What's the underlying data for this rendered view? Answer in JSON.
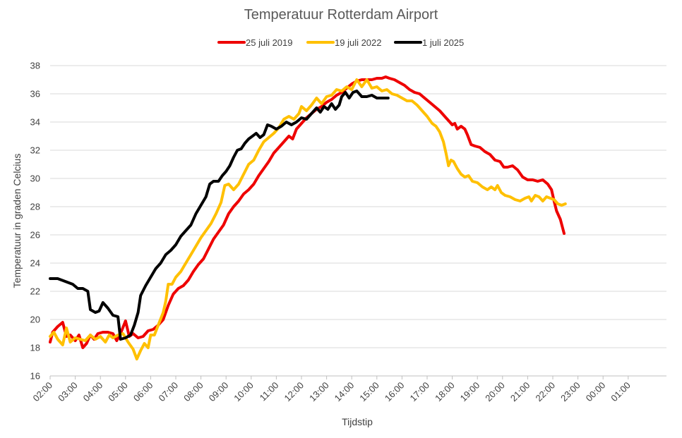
{
  "chart_data": {
    "type": "line",
    "title": "Temperatuur Rotterdam Airport",
    "xlabel": "Tijdstip",
    "ylabel": "Temperatuur in graden Celcius",
    "ylim": [
      16,
      38
    ],
    "yticks": [
      "16",
      "18",
      "20",
      "22",
      "24",
      "26",
      "28",
      "30",
      "32",
      "34",
      "36",
      "38"
    ],
    "xticks": [
      "02:00",
      "03:00",
      "04:00",
      "05:00",
      "06:00",
      "07:00",
      "08:00",
      "09:00",
      "10:00",
      "11:00",
      "12:00",
      "13:00",
      "14:00",
      "15:00",
      "16:00",
      "17:00",
      "18:00",
      "19:00",
      "20:00",
      "21:00",
      "22:00",
      "23:00",
      "00:00",
      "01:00"
    ],
    "xlim_hours": [
      0,
      24.5
    ],
    "grid": "horizontal",
    "legend_position": "top",
    "series": [
      {
        "name": "25 juli 2019",
        "color": "#ee0000",
        "points": [
          [
            0,
            18.4
          ],
          [
            0.1,
            19.1
          ],
          [
            0.3,
            19.5
          ],
          [
            0.5,
            19.8
          ],
          [
            0.65,
            18.8
          ],
          [
            0.8,
            18.9
          ],
          [
            1.0,
            18.5
          ],
          [
            1.15,
            18.9
          ],
          [
            1.3,
            18.0
          ],
          [
            1.45,
            18.3
          ],
          [
            1.6,
            18.9
          ],
          [
            1.75,
            18.6
          ],
          [
            1.9,
            19.0
          ],
          [
            2.1,
            19.1
          ],
          [
            2.3,
            19.1
          ],
          [
            2.5,
            19.0
          ],
          [
            2.65,
            18.5
          ],
          [
            2.8,
            19.0
          ],
          [
            3.0,
            19.9
          ],
          [
            3.15,
            18.8
          ],
          [
            3.3,
            19.0
          ],
          [
            3.5,
            18.7
          ],
          [
            3.7,
            18.8
          ],
          [
            3.9,
            19.2
          ],
          [
            4.1,
            19.3
          ],
          [
            4.3,
            19.6
          ],
          [
            4.5,
            20.0
          ],
          [
            4.7,
            21.0
          ],
          [
            4.9,
            21.8
          ],
          [
            5.1,
            22.2
          ],
          [
            5.3,
            22.4
          ],
          [
            5.5,
            22.8
          ],
          [
            5.7,
            23.4
          ],
          [
            5.9,
            23.9
          ],
          [
            6.1,
            24.3
          ],
          [
            6.3,
            25.0
          ],
          [
            6.5,
            25.7
          ],
          [
            6.7,
            26.2
          ],
          [
            6.9,
            26.7
          ],
          [
            7.1,
            27.5
          ],
          [
            7.3,
            28.0
          ],
          [
            7.5,
            28.4
          ],
          [
            7.7,
            28.9
          ],
          [
            7.9,
            29.2
          ],
          [
            8.1,
            29.6
          ],
          [
            8.3,
            30.2
          ],
          [
            8.5,
            30.7
          ],
          [
            8.7,
            31.2
          ],
          [
            8.9,
            31.8
          ],
          [
            9.1,
            32.2
          ],
          [
            9.3,
            32.6
          ],
          [
            9.5,
            33.0
          ],
          [
            9.65,
            32.8
          ],
          [
            9.8,
            33.5
          ],
          [
            10.0,
            33.9
          ],
          [
            10.2,
            34.3
          ],
          [
            10.4,
            34.6
          ],
          [
            10.6,
            34.9
          ],
          [
            10.8,
            35.1
          ],
          [
            11.0,
            35.4
          ],
          [
            11.2,
            35.6
          ],
          [
            11.4,
            35.9
          ],
          [
            11.6,
            36.1
          ],
          [
            11.8,
            36.4
          ],
          [
            12.0,
            36.7
          ],
          [
            12.2,
            36.9
          ],
          [
            12.4,
            37.0
          ],
          [
            12.6,
            37.0
          ],
          [
            12.8,
            37.0
          ],
          [
            13.0,
            37.1
          ],
          [
            13.2,
            37.1
          ],
          [
            13.35,
            37.2
          ],
          [
            13.5,
            37.1
          ],
          [
            13.7,
            37.0
          ],
          [
            13.9,
            36.8
          ],
          [
            14.1,
            36.6
          ],
          [
            14.3,
            36.3
          ],
          [
            14.5,
            36.1
          ],
          [
            14.7,
            36.0
          ],
          [
            14.9,
            35.7
          ],
          [
            15.1,
            35.4
          ],
          [
            15.3,
            35.1
          ],
          [
            15.5,
            34.8
          ],
          [
            15.7,
            34.4
          ],
          [
            15.85,
            34.1
          ],
          [
            16.0,
            33.8
          ],
          [
            16.1,
            33.9
          ],
          [
            16.2,
            33.5
          ],
          [
            16.35,
            33.7
          ],
          [
            16.5,
            33.5
          ],
          [
            16.6,
            33.1
          ],
          [
            16.75,
            32.4
          ],
          [
            16.9,
            32.3
          ],
          [
            17.1,
            32.2
          ],
          [
            17.3,
            31.9
          ],
          [
            17.5,
            31.7
          ],
          [
            17.7,
            31.3
          ],
          [
            17.9,
            31.2
          ],
          [
            18.05,
            30.8
          ],
          [
            18.2,
            30.8
          ],
          [
            18.4,
            30.9
          ],
          [
            18.6,
            30.6
          ],
          [
            18.8,
            30.1
          ],
          [
            19.0,
            29.9
          ],
          [
            19.2,
            29.9
          ],
          [
            19.4,
            29.8
          ],
          [
            19.6,
            29.9
          ],
          [
            19.8,
            29.6
          ],
          [
            19.95,
            29.2
          ],
          [
            20.05,
            28.4
          ],
          [
            20.15,
            27.7
          ],
          [
            20.3,
            27.1
          ],
          [
            20.45,
            26.1
          ]
        ]
      },
      {
        "name": "19 juli 2022",
        "color": "#ffc000",
        "points": [
          [
            0,
            18.8
          ],
          [
            0.15,
            19.1
          ],
          [
            0.3,
            18.6
          ],
          [
            0.5,
            18.2
          ],
          [
            0.65,
            19.4
          ],
          [
            0.8,
            18.4
          ],
          [
            1.0,
            18.7
          ],
          [
            1.2,
            18.6
          ],
          [
            1.4,
            18.5
          ],
          [
            1.6,
            18.9
          ],
          [
            1.8,
            18.6
          ],
          [
            2.0,
            18.8
          ],
          [
            2.2,
            18.4
          ],
          [
            2.35,
            18.9
          ],
          [
            2.5,
            18.7
          ],
          [
            2.7,
            18.9
          ],
          [
            2.9,
            19.0
          ],
          [
            3.1,
            18.4
          ],
          [
            3.3,
            17.9
          ],
          [
            3.45,
            17.2
          ],
          [
            3.6,
            17.8
          ],
          [
            3.75,
            18.3
          ],
          [
            3.9,
            18.0
          ],
          [
            4.0,
            18.9
          ],
          [
            4.15,
            18.9
          ],
          [
            4.3,
            19.6
          ],
          [
            4.5,
            20.5
          ],
          [
            4.6,
            21.3
          ],
          [
            4.7,
            22.5
          ],
          [
            4.85,
            22.5
          ],
          [
            5.0,
            23.0
          ],
          [
            5.2,
            23.4
          ],
          [
            5.4,
            24.0
          ],
          [
            5.6,
            24.6
          ],
          [
            5.8,
            25.2
          ],
          [
            6.0,
            25.8
          ],
          [
            6.2,
            26.3
          ],
          [
            6.4,
            26.8
          ],
          [
            6.6,
            27.5
          ],
          [
            6.8,
            28.3
          ],
          [
            6.95,
            29.5
          ],
          [
            7.1,
            29.6
          ],
          [
            7.3,
            29.2
          ],
          [
            7.5,
            29.6
          ],
          [
            7.7,
            30.3
          ],
          [
            7.9,
            31.0
          ],
          [
            8.1,
            31.3
          ],
          [
            8.3,
            32.0
          ],
          [
            8.5,
            32.6
          ],
          [
            8.7,
            32.9
          ],
          [
            8.9,
            33.2
          ],
          [
            9.1,
            33.6
          ],
          [
            9.3,
            34.2
          ],
          [
            9.5,
            34.4
          ],
          [
            9.7,
            34.2
          ],
          [
            9.9,
            34.6
          ],
          [
            10.0,
            35.1
          ],
          [
            10.2,
            34.8
          ],
          [
            10.4,
            35.2
          ],
          [
            10.6,
            35.7
          ],
          [
            10.8,
            35.3
          ],
          [
            11.0,
            35.8
          ],
          [
            11.2,
            35.9
          ],
          [
            11.4,
            36.3
          ],
          [
            11.6,
            36.2
          ],
          [
            11.8,
            36.5
          ],
          [
            12.0,
            36.3
          ],
          [
            12.2,
            37.0
          ],
          [
            12.4,
            36.5
          ],
          [
            12.6,
            37.0
          ],
          [
            12.8,
            36.4
          ],
          [
            13.0,
            36.5
          ],
          [
            13.2,
            36.2
          ],
          [
            13.4,
            36.3
          ],
          [
            13.6,
            36.0
          ],
          [
            13.8,
            35.9
          ],
          [
            14.0,
            35.7
          ],
          [
            14.2,
            35.5
          ],
          [
            14.4,
            35.5
          ],
          [
            14.6,
            35.2
          ],
          [
            14.8,
            34.8
          ],
          [
            15.0,
            34.4
          ],
          [
            15.2,
            33.9
          ],
          [
            15.35,
            33.7
          ],
          [
            15.5,
            33.3
          ],
          [
            15.65,
            32.6
          ],
          [
            15.75,
            31.8
          ],
          [
            15.85,
            30.9
          ],
          [
            15.95,
            31.3
          ],
          [
            16.05,
            31.2
          ],
          [
            16.2,
            30.7
          ],
          [
            16.35,
            30.3
          ],
          [
            16.5,
            30.1
          ],
          [
            16.65,
            30.2
          ],
          [
            16.8,
            29.8
          ],
          [
            17.0,
            29.7
          ],
          [
            17.2,
            29.4
          ],
          [
            17.4,
            29.2
          ],
          [
            17.55,
            29.4
          ],
          [
            17.7,
            29.2
          ],
          [
            17.8,
            29.5
          ],
          [
            17.95,
            29.0
          ],
          [
            18.1,
            28.8
          ],
          [
            18.3,
            28.7
          ],
          [
            18.5,
            28.5
          ],
          [
            18.7,
            28.4
          ],
          [
            18.9,
            28.6
          ],
          [
            19.05,
            28.7
          ],
          [
            19.15,
            28.4
          ],
          [
            19.3,
            28.8
          ],
          [
            19.45,
            28.7
          ],
          [
            19.6,
            28.4
          ],
          [
            19.75,
            28.7
          ],
          [
            19.9,
            28.6
          ],
          [
            20.05,
            28.5
          ],
          [
            20.2,
            28.2
          ],
          [
            20.35,
            28.1
          ],
          [
            20.5,
            28.2
          ]
        ]
      },
      {
        "name": "1 juli 2025",
        "color": "#000000",
        "points": [
          [
            0,
            22.9
          ],
          [
            0.3,
            22.9
          ],
          [
            0.6,
            22.7
          ],
          [
            0.9,
            22.5
          ],
          [
            1.1,
            22.2
          ],
          [
            1.3,
            22.2
          ],
          [
            1.5,
            22.0
          ],
          [
            1.6,
            20.7
          ],
          [
            1.8,
            20.5
          ],
          [
            1.95,
            20.6
          ],
          [
            2.1,
            21.2
          ],
          [
            2.3,
            20.8
          ],
          [
            2.5,
            20.3
          ],
          [
            2.7,
            20.2
          ],
          [
            2.8,
            18.6
          ],
          [
            3.0,
            18.7
          ],
          [
            3.2,
            18.9
          ],
          [
            3.35,
            19.6
          ],
          [
            3.5,
            20.5
          ],
          [
            3.6,
            21.7
          ],
          [
            3.8,
            22.4
          ],
          [
            4.0,
            23.0
          ],
          [
            4.2,
            23.6
          ],
          [
            4.4,
            24.0
          ],
          [
            4.6,
            24.6
          ],
          [
            4.8,
            24.9
          ],
          [
            5.0,
            25.3
          ],
          [
            5.2,
            25.9
          ],
          [
            5.4,
            26.3
          ],
          [
            5.6,
            26.7
          ],
          [
            5.8,
            27.5
          ],
          [
            6.0,
            28.1
          ],
          [
            6.2,
            28.7
          ],
          [
            6.35,
            29.6
          ],
          [
            6.5,
            29.8
          ],
          [
            6.7,
            29.8
          ],
          [
            6.85,
            30.2
          ],
          [
            7.0,
            30.5
          ],
          [
            7.15,
            30.9
          ],
          [
            7.3,
            31.5
          ],
          [
            7.45,
            32.0
          ],
          [
            7.6,
            32.1
          ],
          [
            7.75,
            32.5
          ],
          [
            7.9,
            32.8
          ],
          [
            8.05,
            33.0
          ],
          [
            8.2,
            33.2
          ],
          [
            8.35,
            32.9
          ],
          [
            8.5,
            33.1
          ],
          [
            8.65,
            33.8
          ],
          [
            8.8,
            33.7
          ],
          [
            9.0,
            33.5
          ],
          [
            9.2,
            33.7
          ],
          [
            9.4,
            34.0
          ],
          [
            9.6,
            33.8
          ],
          [
            9.8,
            34.0
          ],
          [
            10.0,
            34.3
          ],
          [
            10.2,
            34.2
          ],
          [
            10.4,
            34.6
          ],
          [
            10.6,
            35.0
          ],
          [
            10.75,
            34.7
          ],
          [
            10.9,
            35.1
          ],
          [
            11.05,
            34.9
          ],
          [
            11.2,
            35.3
          ],
          [
            11.35,
            34.9
          ],
          [
            11.5,
            35.2
          ],
          [
            11.6,
            35.8
          ],
          [
            11.75,
            36.1
          ],
          [
            11.9,
            35.7
          ],
          [
            12.05,
            36.1
          ],
          [
            12.2,
            36.2
          ],
          [
            12.4,
            35.8
          ],
          [
            12.6,
            35.8
          ],
          [
            12.8,
            35.9
          ],
          [
            13.0,
            35.7
          ],
          [
            13.2,
            35.7
          ],
          [
            13.45,
            35.7
          ]
        ]
      }
    ]
  }
}
